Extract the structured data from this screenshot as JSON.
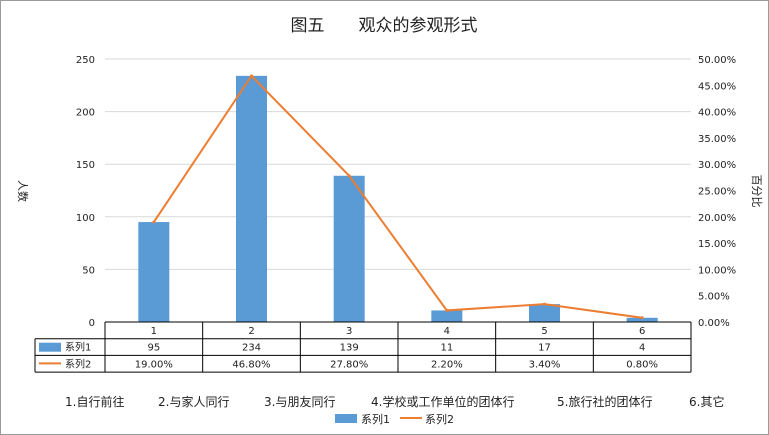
{
  "chart_data": {
    "type": "bar",
    "title": "图五　　观众的参观形式",
    "ylabel": "人数",
    "y2label": "百分比",
    "ylim": [
      0,
      250
    ],
    "y2lim": [
      0,
      0.5
    ],
    "y_ticks": [
      "0",
      "50",
      "100",
      "150",
      "200",
      "250"
    ],
    "y2_ticks": [
      "0.00%",
      "5.00%",
      "10.00%",
      "15.00%",
      "20.00%",
      "25.00%",
      "30.00%",
      "35.00%",
      "40.00%",
      "45.00%",
      "50.00%"
    ],
    "categories": [
      "1",
      "2",
      "3",
      "4",
      "5",
      "6"
    ],
    "series": [
      {
        "name": "系列1",
        "type": "bar",
        "color": "#5b9bd5",
        "values": [
          95,
          234,
          139,
          11,
          17,
          4
        ],
        "labels": [
          "95",
          "234",
          "139",
          "11",
          "17",
          "4"
        ]
      },
      {
        "name": "系列2",
        "type": "line",
        "axis": "right",
        "color": "#ed7d31",
        "values": [
          0.19,
          0.468,
          0.278,
          0.022,
          0.034,
          0.008
        ],
        "labels": [
          "19.00%",
          "46.80%",
          "27.80%",
          "2.20%",
          "3.40%",
          "0.80%"
        ]
      }
    ],
    "category_legend": [
      "1.自行前往",
      "2.与家人同行",
      "3.与朋友同行",
      "4.学校或工作单位的团体行",
      "5.旅行社的团体行",
      "6.其它"
    ],
    "legend": [
      "系列1",
      "系列2"
    ],
    "legend_position": "bottom",
    "grid": true
  }
}
